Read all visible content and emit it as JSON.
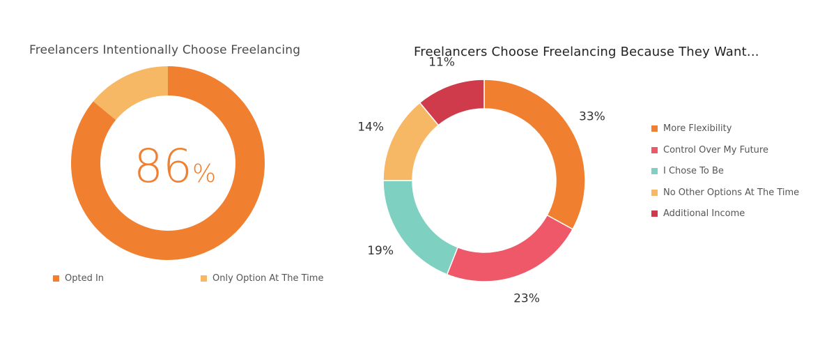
{
  "chart_data": [
    {
      "type": "pie",
      "title": "Freelancers Intentionally Choose Freelancing",
      "categories": [
        "Opted In",
        "Only Option At The Time"
      ],
      "values": [
        86,
        14
      ],
      "colors": [
        "#f07f2f",
        "#f7b865"
      ],
      "center_value": "86",
      "center_unit": "%",
      "legend_position": "bottom"
    },
    {
      "type": "pie",
      "title": "Freelancers Choose Freelancing Because They Want...",
      "categories": [
        "More Flexibility",
        "Control Over My Future",
        "I Chose To Be",
        "No Other Options At The Time",
        "Additional Income"
      ],
      "values": [
        33,
        23,
        19,
        14,
        11
      ],
      "value_labels": [
        "33%",
        "23%",
        "19%",
        "14%",
        "11%"
      ],
      "colors": [
        "#f07f2f",
        "#ee5868",
        "#7ed1c1",
        "#f7b865",
        "#cf3b4a"
      ],
      "legend_position": "right"
    }
  ]
}
